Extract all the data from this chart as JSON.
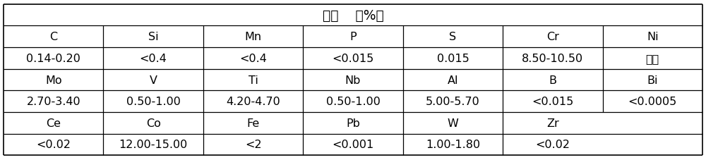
{
  "title": "成分    （%）",
  "rows": [
    [
      "C",
      "Si",
      "Mn",
      "P",
      "S",
      "Cr",
      "Ni"
    ],
    [
      "0.14-0.20",
      "<0.4",
      "<0.4",
      "<0.015",
      "0.015",
      "8.50-10.50",
      "余量"
    ],
    [
      "Mo",
      "V",
      "Ti",
      "Nb",
      "Al",
      "B",
      "Bi"
    ],
    [
      "2.70-3.40",
      "0.50-1.00",
      "4.20-4.70",
      "0.50-1.00",
      "5.00-5.70",
      "<0.015",
      "<0.0005"
    ],
    [
      "Ce",
      "Co",
      "Fe",
      "Pb",
      "W",
      "Zr",
      ""
    ],
    [
      "<0.02",
      "12.00-15.00",
      "<2",
      "<0.001",
      "1.00-1.80",
      "<0.02",
      ""
    ]
  ],
  "background_color": "#ffffff",
  "text_color": "#000000",
  "font_size": 11.5,
  "title_font_size": 13.5,
  "n_cols": 7,
  "border_lw": 1.2,
  "inner_lw": 0.9
}
